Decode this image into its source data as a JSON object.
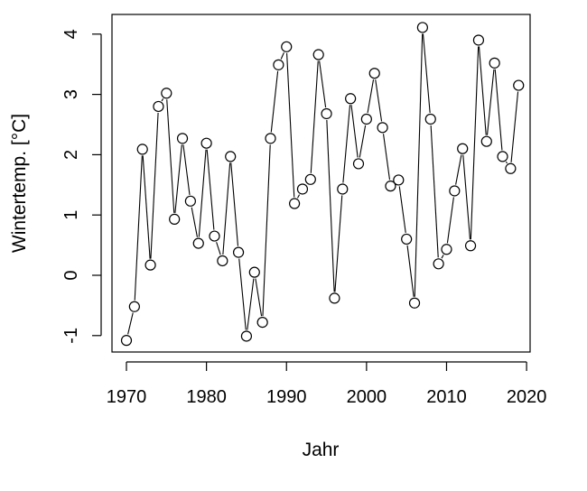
{
  "chart_data": {
    "type": "line",
    "title": "",
    "xlabel": "Jahr",
    "ylabel": "Wintertemp. [°C]",
    "xlim": [
      1970,
      2019
    ],
    "ylim": [
      -1.1,
      4.1
    ],
    "x_ticks": [
      "1970",
      "1980",
      "1990",
      "2000",
      "2010",
      "2020"
    ],
    "y_ticks": [
      "-1",
      "0",
      "1",
      "2",
      "3",
      "4"
    ],
    "grid": false,
    "legend": "none",
    "marker": "open-circle",
    "x": [
      1970,
      1971,
      1972,
      1973,
      1974,
      1975,
      1976,
      1977,
      1978,
      1979,
      1980,
      1981,
      1982,
      1983,
      1984,
      1985,
      1986,
      1987,
      1988,
      1989,
      1990,
      1991,
      1992,
      1993,
      1994,
      1995,
      1996,
      1997,
      1998,
      1999,
      2000,
      2001,
      2002,
      2003,
      2004,
      2005,
      2006,
      2007,
      2008,
      2009,
      2010,
      2011,
      2012,
      2013,
      2014,
      2015,
      2016,
      2017,
      2018,
      2019
    ],
    "y": [
      -1.08,
      -0.52,
      2.09,
      0.17,
      2.8,
      3.02,
      0.93,
      2.27,
      1.23,
      0.53,
      2.19,
      0.65,
      0.24,
      1.97,
      0.38,
      -1.01,
      0.05,
      -0.78,
      2.27,
      3.49,
      3.79,
      1.19,
      1.43,
      1.59,
      3.66,
      2.68,
      -0.38,
      1.43,
      2.93,
      1.85,
      2.59,
      3.35,
      2.45,
      1.48,
      1.58,
      0.6,
      -0.46,
      4.11,
      2.59,
      0.19,
      0.43,
      1.4,
      2.1,
      0.49,
      3.9,
      2.22,
      3.52,
      1.97,
      1.77,
      3.15
    ]
  }
}
